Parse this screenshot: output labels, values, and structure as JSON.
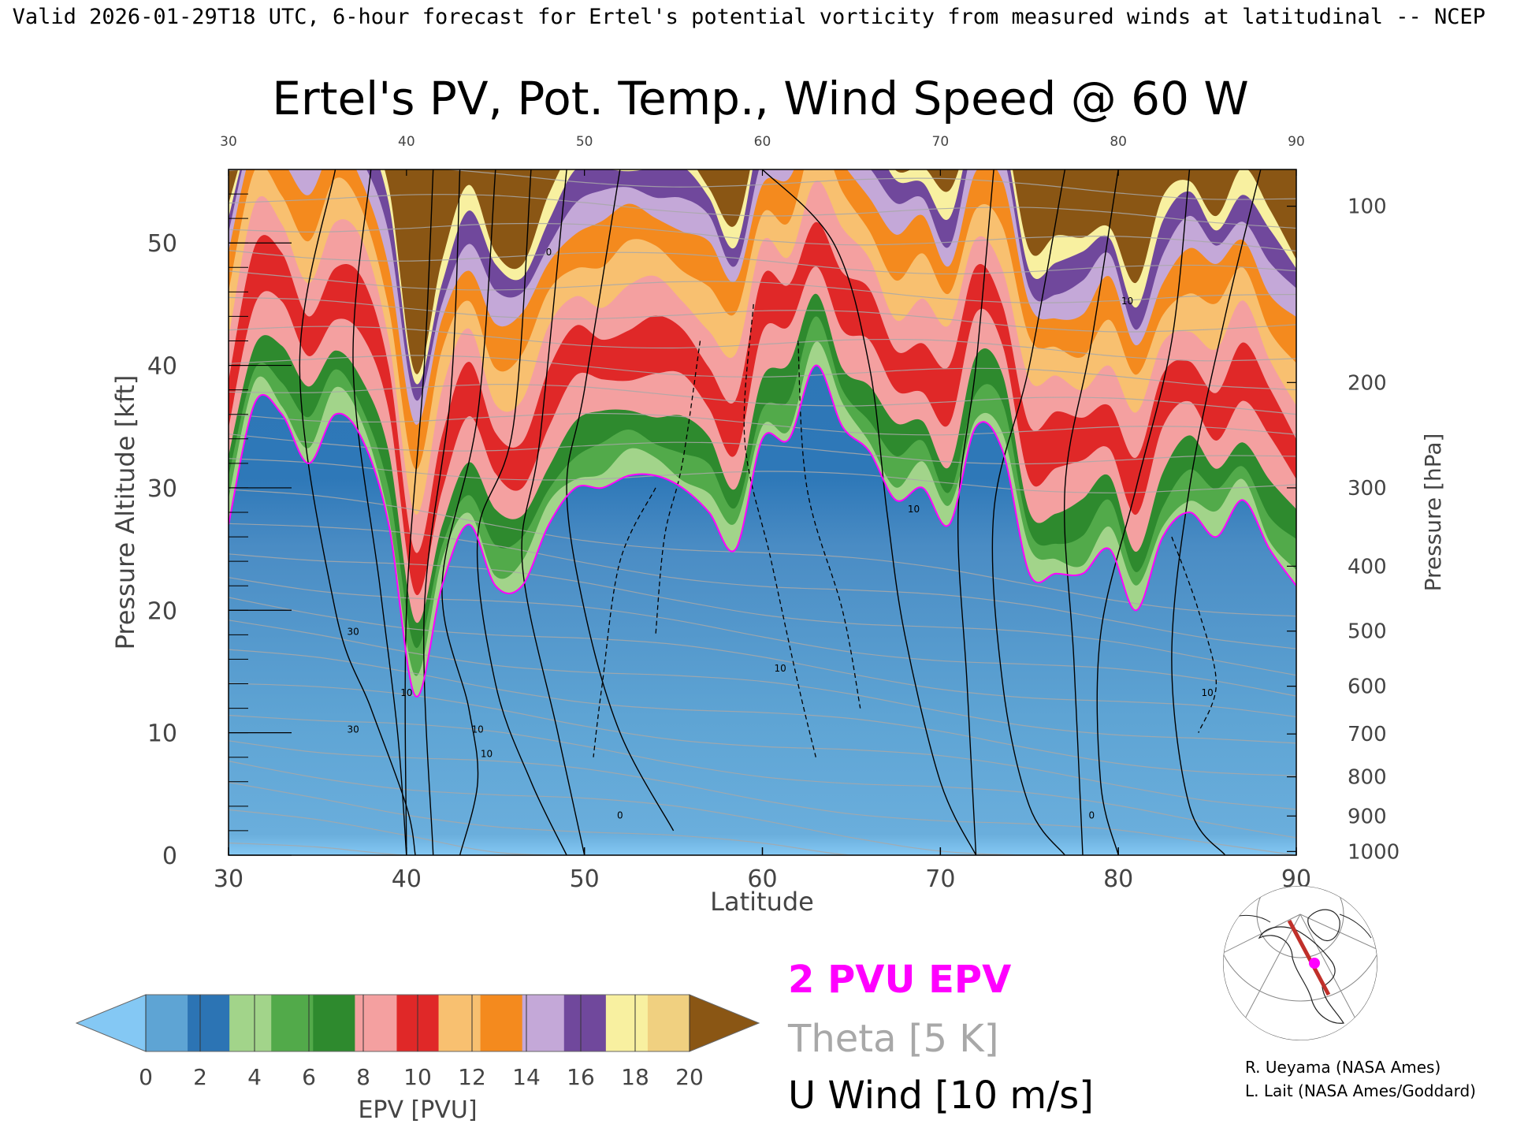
{
  "header": {
    "valid_line": "Valid 2026-01-29T18 UTC, 6-hour forecast for Ertel's potential vorticity from measured winds at latitudinal -- NCEP",
    "title": "Ertel's PV, Pot. Temp., Wind Speed @ 60 W"
  },
  "chart_data": {
    "type": "heatmap",
    "title": "Ertel's PV, Pot. Temp., Wind Speed @ 60 W",
    "xlabel": "Latitude",
    "ylabel": "Pressure Altitude [kft]",
    "y2label": "Pressure [hPa]",
    "xlim": [
      30,
      90
    ],
    "ylim": [
      0,
      56
    ],
    "x_ticks": [
      "30",
      "40",
      "50",
      "60",
      "70",
      "80",
      "90"
    ],
    "top_ticks": [
      "30",
      "40",
      "50",
      "60",
      "70",
      "80",
      "90"
    ],
    "y_ticks": [
      "0",
      "10",
      "20",
      "30",
      "40",
      "50"
    ],
    "pressure_ticks": [
      {
        "label": "100",
        "kft": 53
      },
      {
        "label": "200",
        "kft": 38.6
      },
      {
        "label": "300",
        "kft": 30
      },
      {
        "label": "400",
        "kft": 23.6
      },
      {
        "label": "500",
        "kft": 18.3
      },
      {
        "label": "600",
        "kft": 13.8
      },
      {
        "label": "700",
        "kft": 9.9
      },
      {
        "label": "800",
        "kft": 6.4
      },
      {
        "label": "900",
        "kft": 3.2
      },
      {
        "label": "1000",
        "kft": 0.3
      }
    ],
    "lat_samples": [
      30,
      31.5,
      33,
      34.5,
      36,
      37.5,
      39,
      40.5,
      42,
      43.5,
      45,
      46.5,
      48,
      49.5,
      51,
      52.5,
      54,
      55.5,
      57,
      58.5,
      60,
      61.5,
      63,
      64.5,
      66,
      67.5,
      69,
      70.5,
      72,
      73.5,
      75,
      76.5,
      78,
      79.5,
      81,
      82.5,
      84,
      85.5,
      87,
      88.5,
      90
    ],
    "tropopause_kft": [
      27,
      37,
      36,
      32,
      36,
      34,
      27,
      13,
      22,
      27,
      22,
      22,
      27,
      30,
      30,
      31,
      31,
      30,
      28,
      25,
      34,
      34,
      40,
      35,
      33,
      29,
      30,
      27,
      35,
      33,
      23,
      23,
      23,
      25,
      20,
      26,
      28,
      26,
      29,
      25,
      22
    ],
    "epv_scale": [
      0,
      2,
      4,
      6,
      8,
      10,
      12,
      14,
      16,
      18,
      20
    ],
    "epv_colors": [
      "#84c8f4",
      "#5ea4d4",
      "#2c74b4",
      "#a2d48a",
      "#52aa4a",
      "#2e8a2e",
      "#f4a0a0",
      "#e02828",
      "#f8c070",
      "#f48a1e",
      "#c4a8d8",
      "#70489c",
      "#f8f0a0",
      "#f0d080",
      "#8a5614"
    ],
    "contour_labels": [
      "0",
      "10",
      "30",
      "10",
      "30",
      "10",
      "0",
      "10",
      "10",
      "0",
      "10",
      "10"
    ],
    "colorbar_label": "EPV [PVU]",
    "colorbar_ticks": [
      "0",
      "2",
      "4",
      "6",
      "8",
      "10",
      "12",
      "14",
      "16",
      "18",
      "20"
    ],
    "legend": [
      {
        "label": "2 PVU EPV",
        "color": "#ff00ff"
      },
      {
        "label": "Theta [5 K]",
        "color": "#a8a8a8"
      },
      {
        "label": "U Wind [10 m/s]",
        "color": "#000000"
      }
    ]
  },
  "inset_map": {
    "meridian": "60 W",
    "marker_color": "#ff00ff",
    "section_color": "#c0302a"
  },
  "credits": {
    "line1": "R. Ueyama (NASA Ames)",
    "line2": "L. Lait (NASA Ames/Goddard)"
  }
}
